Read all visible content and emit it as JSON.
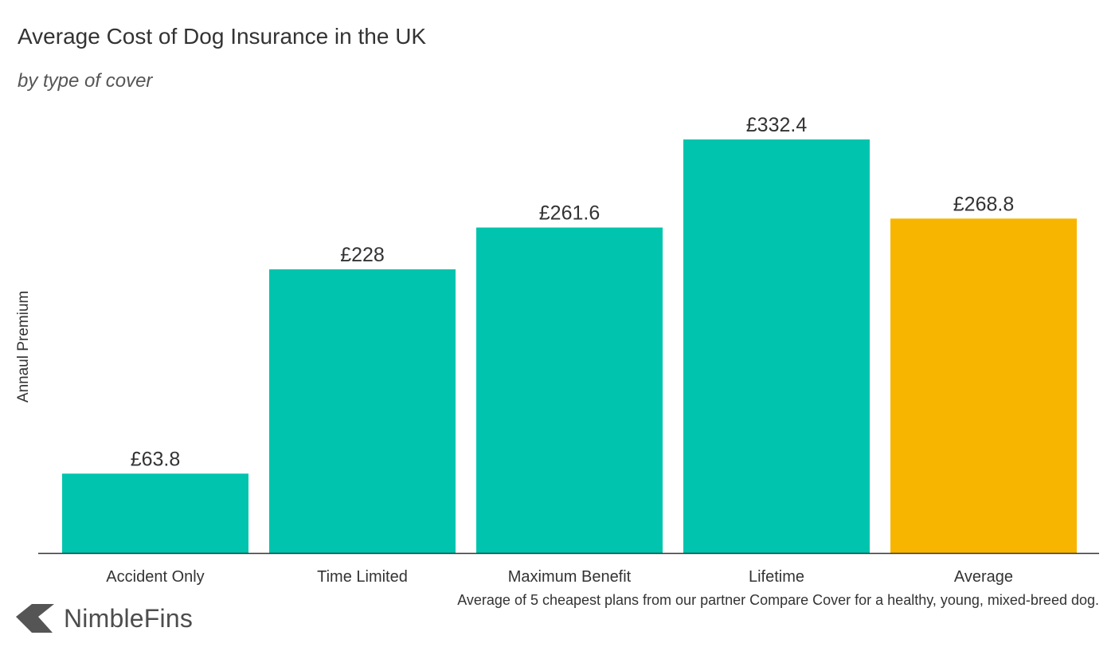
{
  "chart_data": {
    "type": "bar",
    "title": "Average Cost of Dog Insurance in the UK",
    "subtitle": "by type of cover",
    "xlabel": "",
    "ylabel": "Annaul Premium",
    "categories": [
      "Accident Only",
      "Time Limited",
      "Maximum Benefit",
      "Lifetime",
      "Average"
    ],
    "values": [
      63.8,
      228,
      261.6,
      332.4,
      268.8
    ],
    "value_labels": [
      "£63.8",
      "£228",
      "£261.6",
      "£332.4",
      "£268.8"
    ],
    "colors": [
      "#00c4ad",
      "#00c4ad",
      "#00c4ad",
      "#00c4ad",
      "#f7b500"
    ],
    "ylim": [
      0,
      332.4
    ],
    "grid": false,
    "legend": "none",
    "footnote": "Average of 5 cheapest plans from our partner Compare Cover for a healthy, young, mixed-breed dog."
  },
  "brand": {
    "name": "NimbleFins",
    "logo_color": "#555555"
  }
}
